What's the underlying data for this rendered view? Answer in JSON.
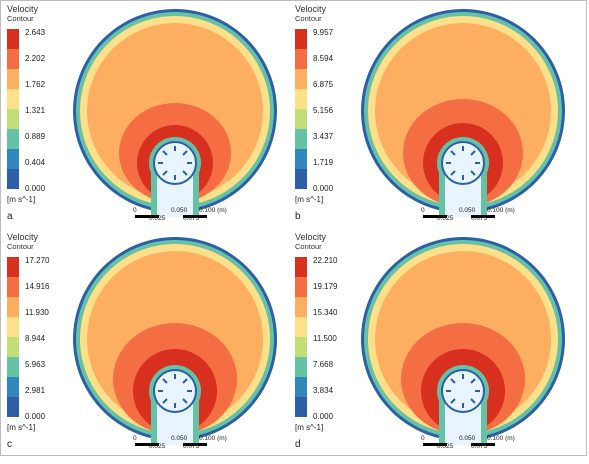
{
  "panels": [
    {
      "title_line1": "Velocity",
      "title_line2": "Contour",
      "ticks": [
        "2.643",
        "2.202",
        "1.762",
        "1.321",
        "0.889",
        "0.404",
        "0.000"
      ],
      "unit": "[m s^-1]",
      "label": "a",
      "scale": [
        "0",
        "0.050",
        "0.100 (m)",
        "0.025",
        "0.075"
      ]
    },
    {
      "title_line1": "Velocity",
      "title_line2": "Contour",
      "ticks": [
        "9.957",
        "8.594",
        "6.875",
        "5.156",
        "3.437",
        "1.719",
        "0.000"
      ],
      "unit": "[m s^-1]",
      "label": "b",
      "scale": [
        "0",
        "0.050",
        "0.100 (m)",
        "0.025",
        "0.075"
      ]
    },
    {
      "title_line1": "Velocity",
      "title_line2": "Contour",
      "ticks": [
        "17.270",
        "14.916",
        "11.930",
        "8.944",
        "5.963",
        "2.981",
        "0.000"
      ],
      "unit": "[m s^-1]",
      "label": "c",
      "scale": [
        "0",
        "0.050",
        "0.100 (m)",
        "0.025",
        "0.075"
      ]
    },
    {
      "title_line1": "Velocity",
      "title_line2": "Contour",
      "ticks": [
        "22.210",
        "19.179",
        "15.340",
        "11.500",
        "7.668",
        "3.834",
        "0.000"
      ],
      "unit": "[m s^-1]",
      "label": "d",
      "scale": [
        "0",
        "0.050",
        "0.100 (m)",
        "0.025",
        "0.075"
      ]
    }
  ],
  "legend_colors": [
    "#d7301f",
    "#f46d43",
    "#fdae61",
    "#fee08b",
    "#e6f598",
    "#abdda4",
    "#66c2a5",
    "#3288bd",
    "#2c5fa8"
  ]
}
